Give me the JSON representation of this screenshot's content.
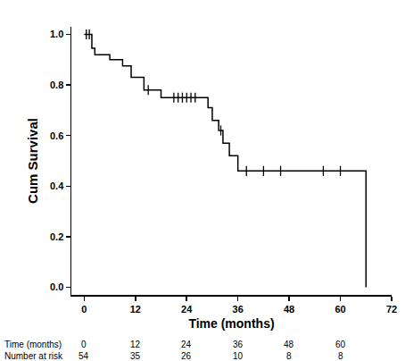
{
  "chart_data": {
    "type": "line",
    "x_label": "Time (months)",
    "y_label": "Cum Survival",
    "color": "#000000",
    "grid": false,
    "xlim": [
      -3,
      72
    ],
    "xticks": [
      0,
      12,
      24,
      36,
      48,
      60,
      72
    ],
    "ylim": [
      -0.03,
      1.03
    ],
    "yticks": [
      {
        "value": 0,
        "label": "0.0"
      },
      0.2,
      0.4,
      0.6,
      0.8,
      {
        "value": 1,
        "label": "1.0"
      }
    ],
    "series": [
      {
        "type": "line",
        "line_style": "step",
        "x": [
          0,
          1.8,
          2.5,
          6,
          9,
          11,
          14,
          18,
          29,
          30,
          31.5,
          32.5,
          34,
          36,
          66
        ],
        "values": [
          1,
          0.945,
          0.92,
          0.9,
          0.875,
          0.83,
          0.78,
          0.75,
          0.71,
          0.66,
          0.62,
          0.57,
          0.52,
          0.46,
          0
        ]
      },
      {
        "type": "scatter",
        "marker": "tick",
        "x": [
          0.5,
          1.2,
          15,
          21,
          22,
          23,
          24,
          25,
          26,
          32,
          38,
          42,
          46,
          56,
          60
        ],
        "values": [
          1,
          1,
          0.78,
          0.75,
          0.75,
          0.75,
          0.75,
          0.75,
          0.75,
          0.62,
          0.46,
          0.46,
          0.46,
          0.46,
          0.46
        ]
      }
    ],
    "risk_table": [
      {
        "label": "Time (months)",
        "values": [
          0,
          12,
          24,
          36,
          48,
          60
        ]
      },
      {
        "label": "Number at risk",
        "values": [
          54,
          35,
          26,
          10,
          8,
          8
        ]
      }
    ]
  }
}
